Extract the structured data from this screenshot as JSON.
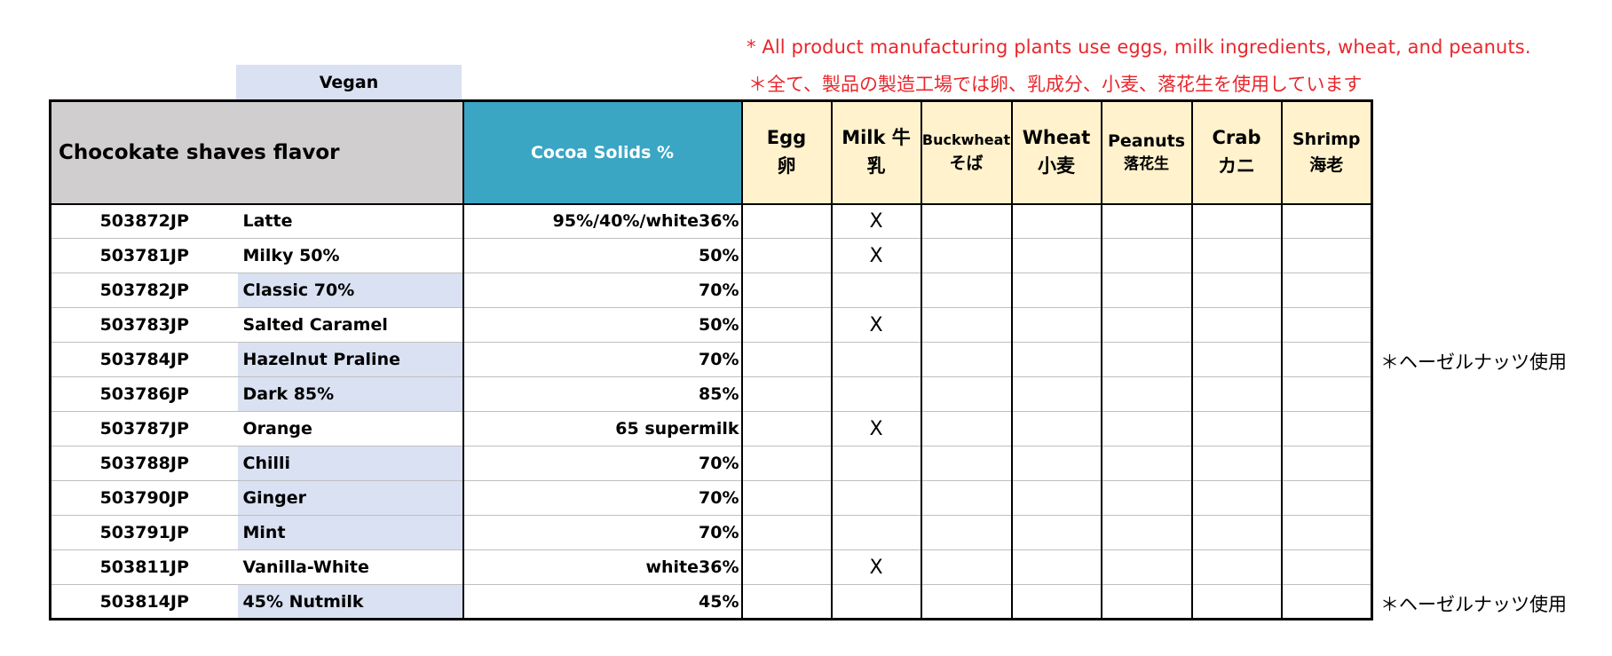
{
  "notes": {
    "english": "* All product manufacturing plants use eggs, milk ingredients, wheat, and peanuts.",
    "japanese": "＊全て、製品の製造工場では卵、乳成分、小麦、落花生を使用しています"
  },
  "vegan_label": "Vegan",
  "header": {
    "flavor": "Chocokate shaves flavor",
    "cocoa": "Cocoa Solids %",
    "allergens": [
      {
        "line1": "Egg",
        "line2": "卵"
      },
      {
        "line1": "Milk 牛",
        "line2": "乳"
      },
      {
        "line1": "Buckwheat",
        "line2": "そば"
      },
      {
        "line1": "Wheat",
        "line2": "小麦"
      },
      {
        "line1": "Peanuts",
        "line2": "落花生"
      },
      {
        "line1": "Crab",
        "line2": "カニ"
      },
      {
        "line1": "Shrimp",
        "line2": "海老"
      }
    ]
  },
  "rows": [
    {
      "code": "503872JP",
      "name": "Latte",
      "vegan": false,
      "cocoa": "95%/40%/white36%",
      "marks": [
        "",
        "X",
        "",
        "",
        "",
        "",
        ""
      ],
      "side_note": ""
    },
    {
      "code": "503781JP",
      "name": "Milky 50%",
      "vegan": false,
      "cocoa": "50%",
      "marks": [
        "",
        "X",
        "",
        "",
        "",
        "",
        ""
      ],
      "side_note": ""
    },
    {
      "code": "503782JP",
      "name": "Classic 70%",
      "vegan": true,
      "cocoa": "70%",
      "marks": [
        "",
        "",
        "",
        "",
        "",
        "",
        ""
      ],
      "side_note": ""
    },
    {
      "code": "503783JP",
      "name": "Salted Caramel",
      "vegan": false,
      "cocoa": "50%",
      "marks": [
        "",
        "X",
        "",
        "",
        "",
        "",
        ""
      ],
      "side_note": ""
    },
    {
      "code": "503784JP",
      "name": "Hazelnut Praline",
      "vegan": true,
      "cocoa": "70%",
      "marks": [
        "",
        "",
        "",
        "",
        "",
        "",
        ""
      ],
      "side_note": "＊ヘーゼルナッツ使用"
    },
    {
      "code": "503786JP",
      "name": "Dark 85%",
      "vegan": true,
      "cocoa": "85%",
      "marks": [
        "",
        "",
        "",
        "",
        "",
        "",
        ""
      ],
      "side_note": ""
    },
    {
      "code": "503787JP",
      "name": "Orange",
      "vegan": false,
      "cocoa": "65 supermilk",
      "marks": [
        "",
        "X",
        "",
        "",
        "",
        "",
        ""
      ],
      "side_note": ""
    },
    {
      "code": "503788JP",
      "name": "Chilli",
      "vegan": true,
      "cocoa": "70%",
      "marks": [
        "",
        "",
        "",
        "",
        "",
        "",
        ""
      ],
      "side_note": ""
    },
    {
      "code": "503790JP",
      "name": "Ginger",
      "vegan": true,
      "cocoa": "70%",
      "marks": [
        "",
        "",
        "",
        "",
        "",
        "",
        ""
      ],
      "side_note": ""
    },
    {
      "code": "503791JP",
      "name": "Mint",
      "vegan": true,
      "cocoa": "70%",
      "marks": [
        "",
        "",
        "",
        "",
        "",
        "",
        ""
      ],
      "side_note": ""
    },
    {
      "code": "503811JP",
      "name": "Vanilla-White",
      "vegan": false,
      "cocoa": "white36%",
      "marks": [
        "",
        "X",
        "",
        "",
        "",
        "",
        ""
      ],
      "side_note": ""
    },
    {
      "code": "503814JP",
      "name": "45% Nutmilk",
      "vegan": true,
      "cocoa": "45%",
      "marks": [
        "",
        "",
        "",
        "",
        "",
        "",
        ""
      ],
      "side_note": "＊ヘーゼルナッツ使用"
    }
  ]
}
